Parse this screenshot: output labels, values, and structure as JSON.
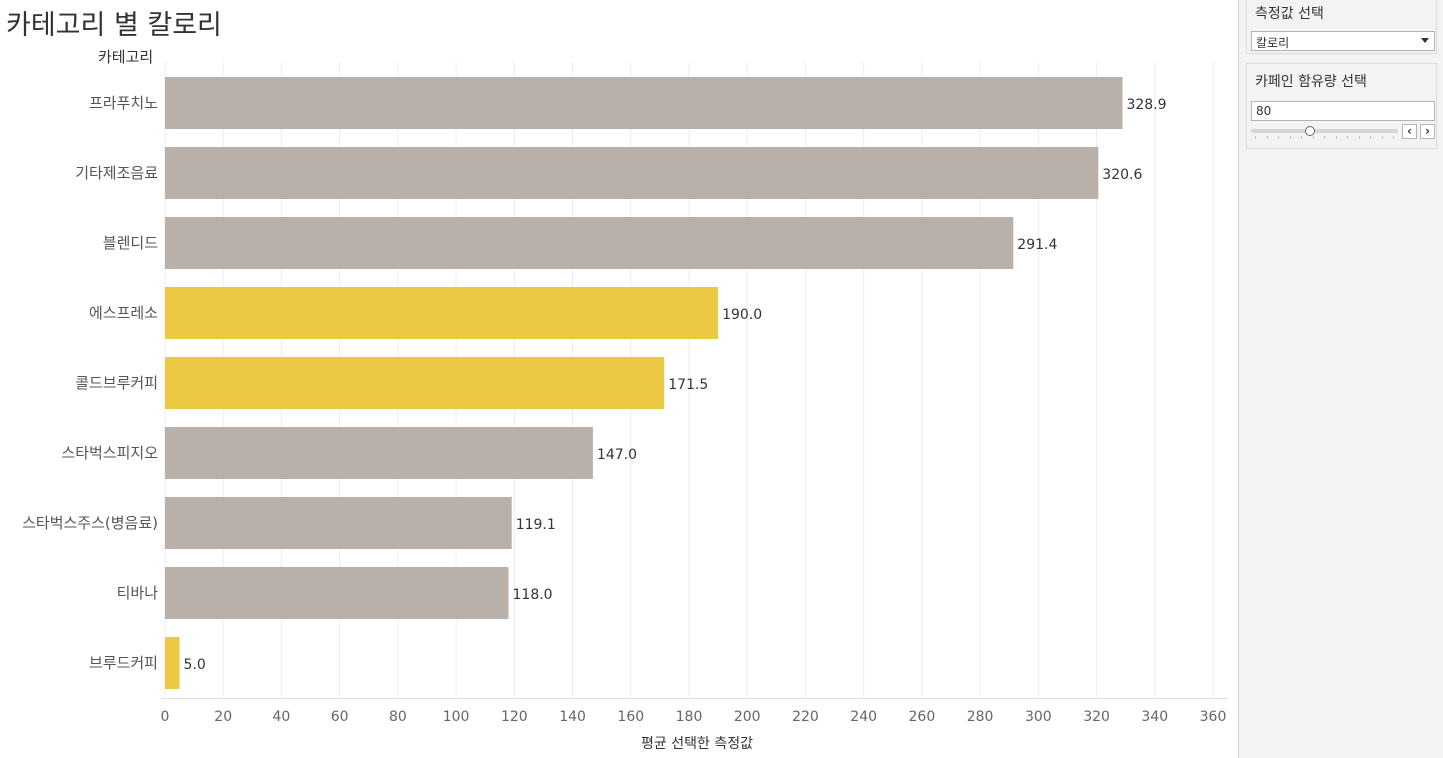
{
  "title": "카테고리 별 칼로리",
  "row_header": "카테고리",
  "colors": {
    "highlight": "#ebc944",
    "normal": "#bab0aa",
    "grid": "#ececec"
  },
  "chart_data": {
    "type": "bar",
    "orientation": "horizontal",
    "categories": [
      "프라푸치노",
      "기타제조음료",
      "블렌디드",
      "에스프레소",
      "콜드브루커피",
      "스타벅스피지오",
      "스타벅스주스(병음료)",
      "티바나",
      "브루드커피"
    ],
    "values": [
      328.9,
      320.6,
      291.4,
      190.0,
      171.5,
      147.0,
      119.1,
      118.0,
      5.0
    ],
    "value_labels": [
      "328.9",
      "320.6",
      "291.4",
      "190.0",
      "171.5",
      "147.0",
      "119.1",
      "118.0",
      "5.0"
    ],
    "highlighted": [
      false,
      false,
      false,
      true,
      true,
      false,
      false,
      false,
      true
    ],
    "xlabel": "평균 선택한 측정값",
    "ylabel": "카테고리",
    "xlim": [
      0,
      360
    ],
    "xticks": [
      0,
      20,
      40,
      60,
      80,
      100,
      120,
      140,
      160,
      180,
      200,
      220,
      240,
      260,
      280,
      300,
      320,
      340,
      360
    ],
    "grid": true
  },
  "panel": {
    "measure": {
      "title": "측정값 선택",
      "selected": "칼로리"
    },
    "caffeine": {
      "title": "카페인 함유량 선택",
      "value": "80",
      "slider_fraction": 0.4,
      "prev_icon": "chevron-left-icon",
      "next_icon": "chevron-right-icon"
    }
  }
}
